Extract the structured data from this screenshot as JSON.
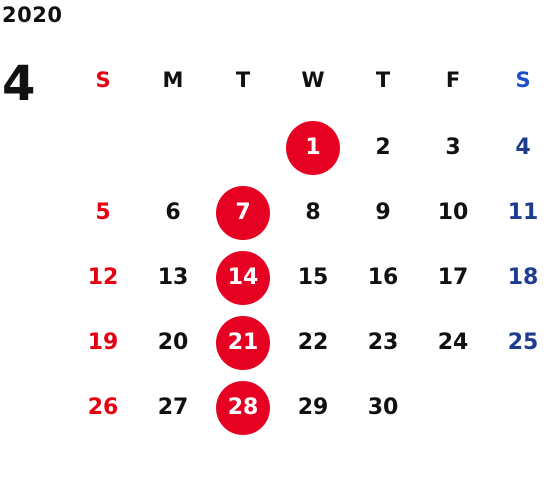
{
  "calendar": {
    "year": "2020",
    "month": "4",
    "weekdays": [
      "S",
      "M",
      "T",
      "W",
      "T",
      "F",
      "S"
    ],
    "weeks": [
      [
        "",
        "",
        "",
        "1",
        "2",
        "3",
        "4"
      ],
      [
        "5",
        "6",
        "7",
        "8",
        "9",
        "10",
        "11"
      ],
      [
        "12",
        "13",
        "14",
        "15",
        "16",
        "17",
        "18"
      ],
      [
        "19",
        "20",
        "21",
        "22",
        "23",
        "24",
        "25"
      ],
      [
        "26",
        "27",
        "28",
        "29",
        "30",
        "",
        ""
      ]
    ],
    "highlighted_days": [
      "1",
      "7",
      "14",
      "21",
      "28"
    ],
    "colors": {
      "sunday": "#e60012",
      "saturday": "#1d3c8f",
      "highlight": "#e60021",
      "text": "#111111"
    }
  }
}
